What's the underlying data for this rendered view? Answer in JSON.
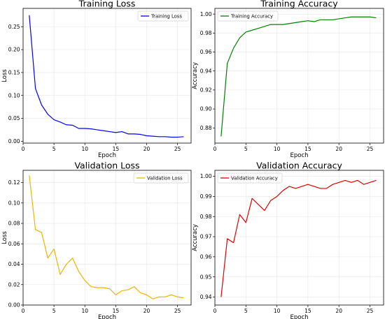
{
  "chart_data": [
    {
      "type": "line",
      "title": "Training Loss",
      "xlabel": "Epoch",
      "ylabel": "Loss",
      "xlim": [
        0,
        27.2
      ],
      "ylim": [
        -0.004,
        0.29
      ],
      "xticks": [
        0,
        5,
        10,
        15,
        20,
        25
      ],
      "yticks": [
        0.0,
        0.05,
        0.1,
        0.15,
        0.2,
        0.25
      ],
      "ytick_labels": [
        "0.00",
        "0.05",
        "0.10",
        "0.15",
        "0.20",
        "0.25"
      ],
      "grid": true,
      "legend_position": "top-right",
      "series": [
        {
          "name": "Training Loss",
          "color": "#0000ff",
          "x": [
            1,
            2,
            3,
            4,
            5,
            6,
            7,
            8,
            9,
            10,
            11,
            12,
            13,
            14,
            15,
            16,
            17,
            18,
            19,
            20,
            21,
            22,
            23,
            24,
            25,
            26
          ],
          "y": [
            0.275,
            0.115,
            0.079,
            0.059,
            0.047,
            0.042,
            0.036,
            0.035,
            0.028,
            0.028,
            0.027,
            0.025,
            0.023,
            0.021,
            0.019,
            0.021,
            0.016,
            0.016,
            0.015,
            0.012,
            0.011,
            0.01,
            0.01,
            0.009,
            0.009,
            0.01
          ]
        }
      ]
    },
    {
      "type": "line",
      "title": "Training Accuracy",
      "xlabel": "Epoch",
      "ylabel": "Accuracy",
      "xlim": [
        0,
        27.2
      ],
      "ylim": [
        0.864,
        1.006
      ],
      "xticks": [
        0,
        5,
        10,
        15,
        20,
        25
      ],
      "yticks": [
        0.88,
        0.9,
        0.92,
        0.94,
        0.96,
        0.98,
        1.0
      ],
      "ytick_labels": [
        "0.88",
        "0.90",
        "0.92",
        "0.94",
        "0.96",
        "0.98",
        "1.00"
      ],
      "grid": true,
      "legend_position": "top-left",
      "series": [
        {
          "name": "Training Accuracy",
          "color": "#008000",
          "x": [
            1,
            2,
            3,
            4,
            5,
            6,
            7,
            8,
            9,
            10,
            11,
            12,
            13,
            14,
            15,
            16,
            17,
            18,
            19,
            20,
            21,
            22,
            23,
            24,
            25,
            26
          ],
          "y": [
            0.871,
            0.948,
            0.964,
            0.975,
            0.981,
            0.983,
            0.985,
            0.987,
            0.989,
            0.989,
            0.989,
            0.99,
            0.991,
            0.992,
            0.993,
            0.992,
            0.994,
            0.994,
            0.994,
            0.995,
            0.996,
            0.997,
            0.997,
            0.997,
            0.997,
            0.996
          ]
        }
      ]
    },
    {
      "type": "line",
      "title": "Validation Loss",
      "xlabel": "Epoch",
      "ylabel": "Loss",
      "xlim": [
        0,
        27.2
      ],
      "ylim": [
        0.0,
        0.132
      ],
      "xticks": [
        0,
        5,
        10,
        15,
        20,
        25
      ],
      "yticks": [
        0.0,
        0.02,
        0.04,
        0.06,
        0.08,
        0.1,
        0.12
      ],
      "ytick_labels": [
        "0.00",
        "0.02",
        "0.04",
        "0.06",
        "0.08",
        "0.10",
        "0.12"
      ],
      "grid": true,
      "legend_position": "top-right",
      "series": [
        {
          "name": "Validation Loss",
          "color": "#f0b400",
          "x": [
            1,
            2,
            3,
            4,
            5,
            6,
            7,
            8,
            9,
            10,
            11,
            12,
            13,
            14,
            15,
            16,
            17,
            18,
            19,
            20,
            21,
            22,
            23,
            24,
            25,
            26
          ],
          "y": [
            0.127,
            0.074,
            0.071,
            0.046,
            0.055,
            0.03,
            0.04,
            0.046,
            0.033,
            0.024,
            0.018,
            0.017,
            0.017,
            0.016,
            0.01,
            0.014,
            0.015,
            0.018,
            0.012,
            0.01,
            0.006,
            0.008,
            0.008,
            0.01,
            0.008,
            0.007
          ]
        }
      ]
    },
    {
      "type": "line",
      "title": "Validation Accuracy",
      "xlabel": "Epoch",
      "ylabel": "Accuracy",
      "xlim": [
        0,
        27.2
      ],
      "ylim": [
        0.936,
        1.003
      ],
      "xticks": [
        0,
        5,
        10,
        15,
        20,
        25
      ],
      "yticks": [
        0.94,
        0.95,
        0.96,
        0.97,
        0.98,
        0.99,
        1.0
      ],
      "ytick_labels": [
        "0.94",
        "0.95",
        "0.96",
        "0.97",
        "0.98",
        "0.99",
        "1.00"
      ],
      "grid": true,
      "legend_position": "top-left",
      "series": [
        {
          "name": "Validation Accuracy",
          "color": "#e00000",
          "x": [
            1,
            2,
            3,
            4,
            5,
            6,
            7,
            8,
            9,
            10,
            11,
            12,
            13,
            14,
            15,
            16,
            17,
            18,
            19,
            20,
            21,
            22,
            23,
            24,
            25,
            26
          ],
          "y": [
            0.94,
            0.969,
            0.967,
            0.981,
            0.977,
            0.989,
            0.986,
            0.983,
            0.988,
            0.99,
            0.993,
            0.995,
            0.994,
            0.995,
            0.996,
            0.995,
            0.994,
            0.994,
            0.996,
            0.997,
            0.998,
            0.997,
            0.998,
            0.996,
            0.997,
            0.998
          ]
        }
      ]
    }
  ]
}
